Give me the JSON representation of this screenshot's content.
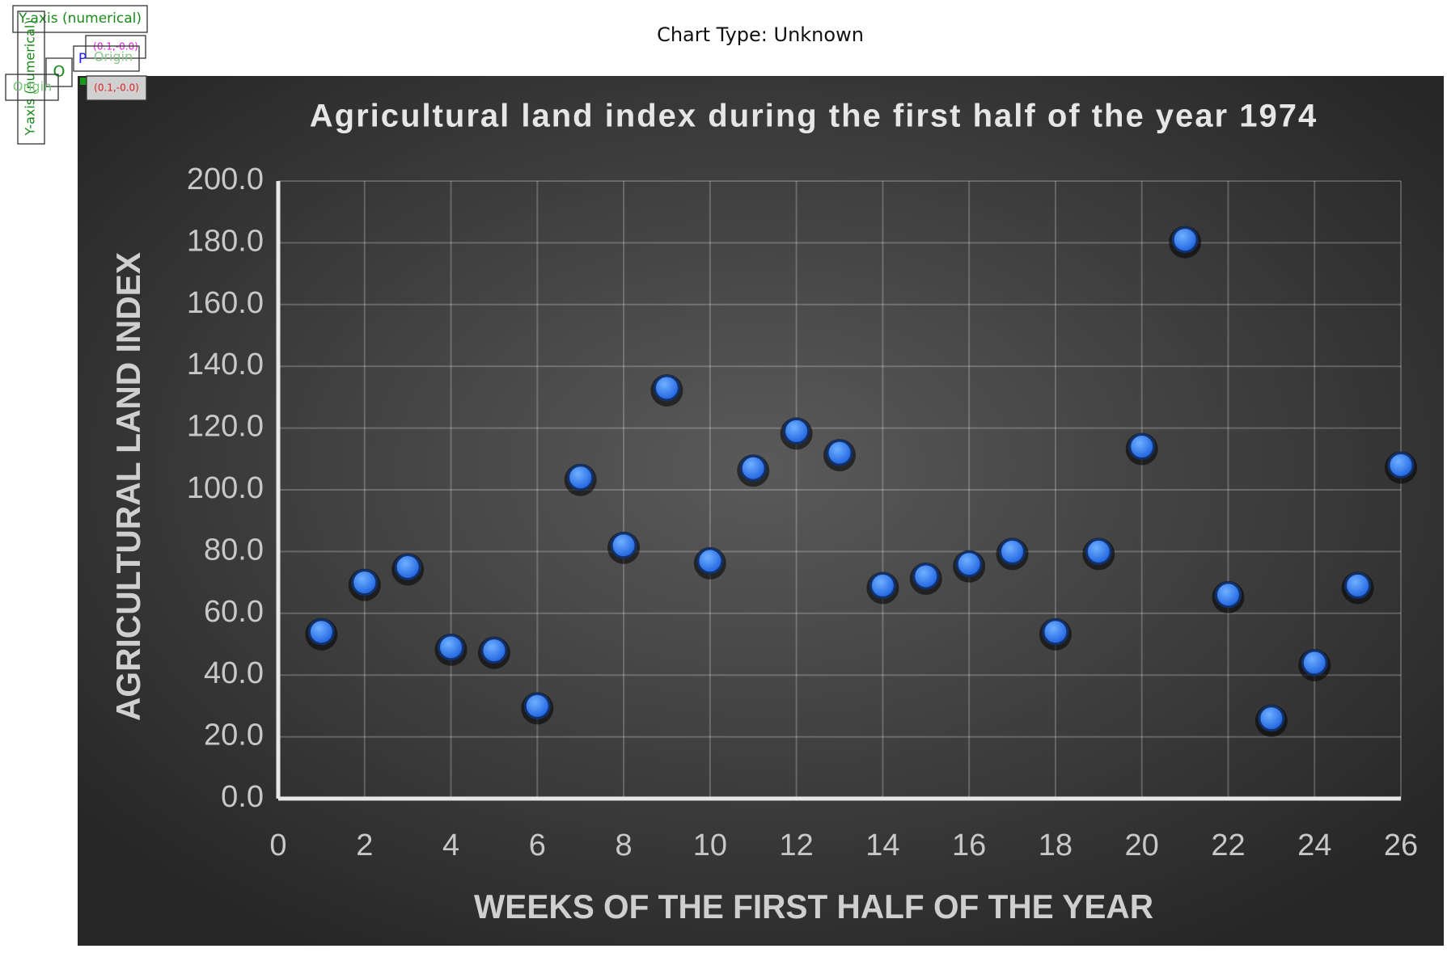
{
  "header": {
    "title": "Chart Type: Unknown"
  },
  "annotations": [
    "Y-axis (numerical)",
    "Y-axis (numerical)",
    "O",
    "Origin",
    "(0.1,-0.0)",
    "P",
    "Origin",
    "(0.1,-0.0)"
  ],
  "chart_data": {
    "type": "scatter",
    "title": "Agricultural land index during the first half of the year 1974",
    "x_label": "WEEKS OF THE FIRST HALF OF THE YEAR",
    "y_label": "AGRICULTURAL LAND INDEX",
    "x": [
      1,
      2,
      3,
      4,
      5,
      6,
      7,
      8,
      9,
      10,
      11,
      12,
      13,
      14,
      15,
      16,
      17,
      18,
      19,
      20,
      21,
      22,
      23,
      24,
      25,
      26
    ],
    "values": [
      54,
      70,
      75,
      49,
      48,
      30,
      104,
      82,
      133,
      77,
      107,
      119,
      112,
      69,
      72,
      76,
      80,
      54,
      80,
      114,
      181,
      66,
      26,
      44,
      69,
      108
    ],
    "color": "#2f7cf6",
    "xlim": [
      0,
      26
    ],
    "xticks": [
      0,
      2,
      4,
      6,
      8,
      10,
      12,
      14,
      16,
      18,
      20,
      22,
      24,
      26
    ],
    "ylim": [
      0,
      200
    ],
    "yticks": [
      {
        "value": 0,
        "label": "0.0"
      },
      {
        "value": 20,
        "label": "20.0"
      },
      {
        "value": 40,
        "label": "40.0"
      },
      {
        "value": 60,
        "label": "60.0"
      },
      {
        "value": 80,
        "label": "80.0"
      },
      {
        "value": 100,
        "label": "100.0"
      },
      {
        "value": 120,
        "label": "120.0"
      },
      {
        "value": 140,
        "label": "140.0"
      },
      {
        "value": 160,
        "label": "160.0"
      },
      {
        "value": 180,
        "label": "180.0"
      },
      {
        "value": 200,
        "label": "200.0"
      }
    ],
    "grid": true
  }
}
